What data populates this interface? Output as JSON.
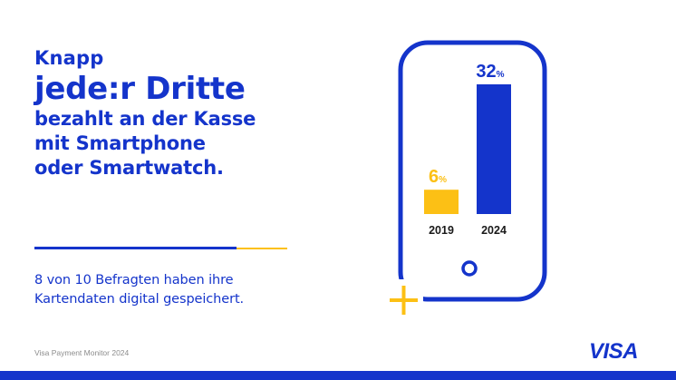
{
  "heading": {
    "line1": "Knapp",
    "line2": "jede:r Dritte",
    "line3": "bezahlt an der Kasse",
    "line4": "mit Smartphone",
    "line5": "oder Smartwatch."
  },
  "statement": {
    "line1": "8 von 10 Befragten haben ihre",
    "line2": "Kartendaten digital gespeichert."
  },
  "source": "Visa Payment Monitor 2024",
  "logo": "VISA",
  "colors": {
    "brand_blue": "#1434CB",
    "accent_yellow": "#FCC015"
  },
  "chart_data": {
    "type": "bar",
    "categories": [
      "2019",
      "2024"
    ],
    "values": [
      6,
      32
    ],
    "value_labels": [
      "6",
      "32"
    ],
    "unit": "%",
    "bar_colors": [
      "#FCC015",
      "#1434CB"
    ],
    "ylim": [
      0,
      32
    ],
    "grid": false
  }
}
